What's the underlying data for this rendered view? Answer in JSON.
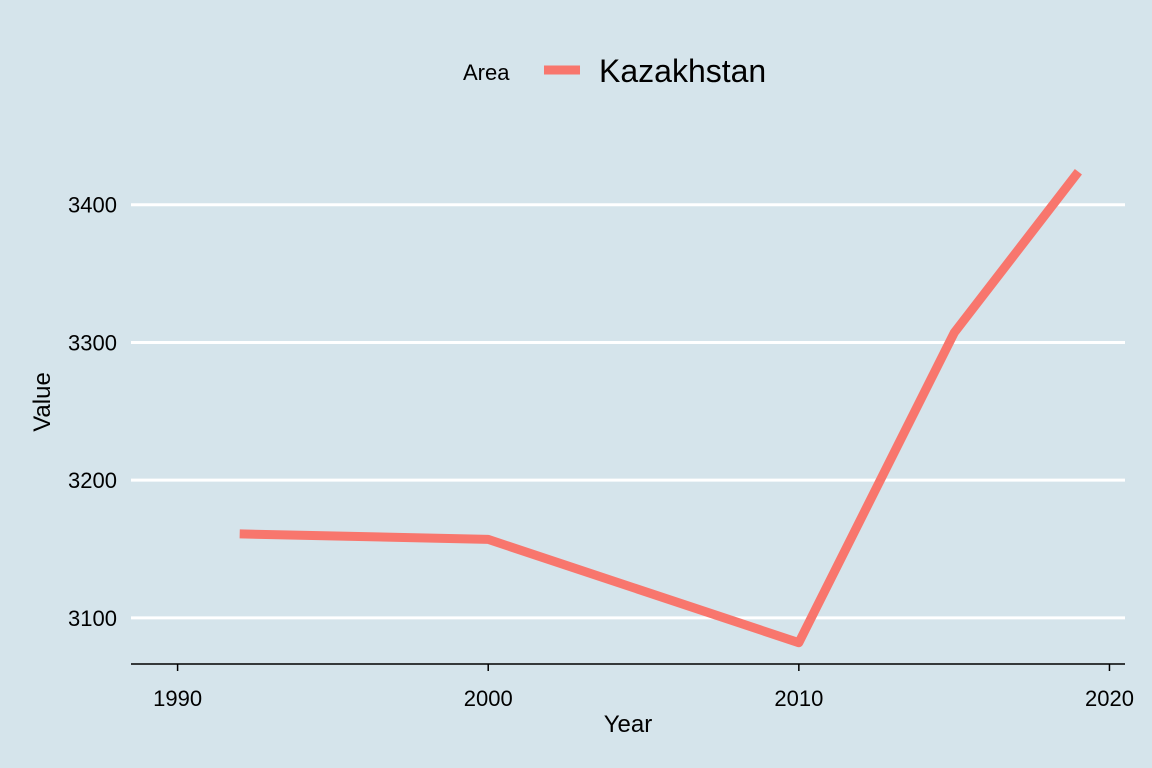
{
  "chart_data": {
    "type": "line",
    "title": "",
    "xlabel": "Year",
    "ylabel": "Value",
    "xlim": [
      1988.5,
      2020.5
    ],
    "ylim": [
      3066.5,
      3447
    ],
    "x_ticks": [
      1990,
      2000,
      2010,
      2020
    ],
    "y_ticks": [
      3100,
      3200,
      3300,
      3400
    ],
    "grid": "horizontal major lines",
    "legend": {
      "title": "Area",
      "position": "top"
    },
    "series": [
      {
        "name": "Kazakhstan",
        "color": "#f8766d",
        "x": [
          1992,
          2000,
          2010,
          2015,
          2019
        ],
        "y": [
          3161,
          3157,
          3082,
          3307,
          3424
        ]
      }
    ]
  },
  "colors": {
    "panel_background": "#d5e4eb",
    "grid": "#ffffff",
    "axis": "#000000"
  }
}
